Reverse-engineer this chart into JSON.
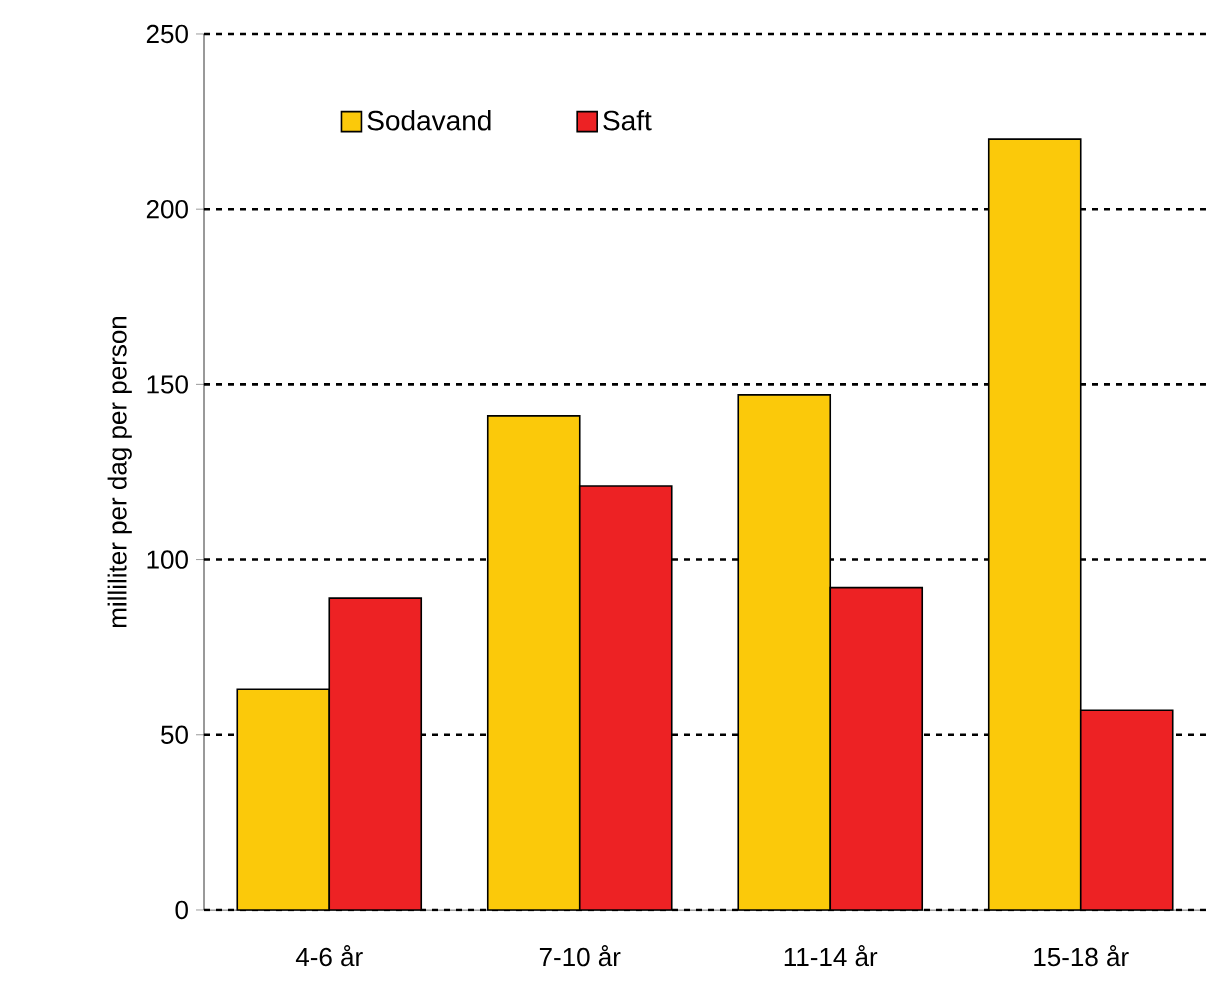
{
  "chart_data": {
    "type": "bar",
    "ylabel": "milliliter per dag per person",
    "categories": [
      "4-6 år",
      "7-10 år",
      "11-14 år",
      "15-18 år"
    ],
    "series": [
      {
        "name": "Sodavand",
        "color": "#fbc90a",
        "values": [
          63,
          141,
          147,
          220
        ]
      },
      {
        "name": "Saft",
        "color": "#ed2224",
        "values": [
          89,
          121,
          92,
          57
        ]
      }
    ],
    "ylim": [
      0,
      250
    ],
    "yticks": [
      0,
      50,
      100,
      150,
      200,
      250
    ],
    "grid": "y",
    "legend": "top"
  }
}
